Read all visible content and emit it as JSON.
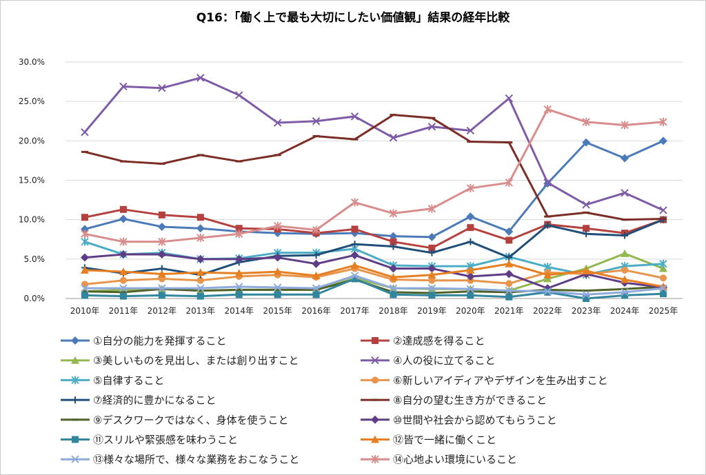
{
  "chart_data": {
    "type": "line",
    "title": "Q16：「働く上で最も大切にしたい価値観」結果の経年比較",
    "xlabel": "",
    "ylabel": "",
    "ylim": [
      0,
      30
    ],
    "y_ticks": [
      "0.0%",
      "5.0%",
      "10.0%",
      "15.0%",
      "20.0%",
      "25.0%",
      "30.0%"
    ],
    "categories": [
      "2010年",
      "2011年",
      "2012年",
      "2013年",
      "2014年",
      "2015年",
      "2016年",
      "2017年",
      "2018年",
      "2019年",
      "2020年",
      "2021年",
      "2022年",
      "2023年",
      "2024年",
      "2025年"
    ],
    "grid": true,
    "legend_position": "bottom",
    "series": [
      {
        "name": "①自分の能力を発揮すること",
        "color": "#4a7ab8",
        "marker": "diamond",
        "values": [
          8.8,
          10.1,
          9.1,
          8.9,
          8.5,
          8.3,
          8.2,
          8.3,
          7.9,
          7.8,
          10.4,
          8.5,
          14.6,
          19.8,
          17.8,
          20.0
        ]
      },
      {
        "name": "②達成感を得ること",
        "color": "#b5413f",
        "marker": "square",
        "values": [
          10.3,
          11.3,
          10.6,
          10.3,
          8.9,
          8.8,
          8.3,
          8.8,
          7.2,
          6.4,
          9.0,
          7.4,
          9.4,
          8.9,
          8.3,
          10.0
        ]
      },
      {
        "name": "③美しいものを見出し、または創り出すこと",
        "color": "#93b84f",
        "marker": "triangle",
        "values": [
          0.9,
          1.1,
          1.2,
          1.0,
          1.1,
          1.1,
          1.1,
          2.6,
          1.3,
          1.2,
          1.2,
          1.0,
          2.5,
          3.8,
          5.7,
          3.8
        ]
      },
      {
        "name": "④人の役に立てること",
        "color": "#7e5ba6",
        "marker": "x",
        "values": [
          21.1,
          26.9,
          26.7,
          28.0,
          25.8,
          22.3,
          22.5,
          23.1,
          20.4,
          21.8,
          21.3,
          25.4,
          14.7,
          11.9,
          13.4,
          11.2
        ]
      },
      {
        "name": "⑤自律すること",
        "color": "#4bacc6",
        "marker": "star",
        "values": [
          7.2,
          5.6,
          5.8,
          5.0,
          5.1,
          5.8,
          5.8,
          6.3,
          4.2,
          4.1,
          4.1,
          5.3,
          4.0,
          3.0,
          4.1,
          4.4
        ]
      },
      {
        "name": "⑥新しいアイディアやデザインを生み出すこと",
        "color": "#e8944a",
        "marker": "circle",
        "values": [
          1.8,
          2.3,
          2.5,
          2.3,
          2.8,
          3.0,
          2.7,
          3.8,
          2.4,
          2.3,
          2.3,
          1.9,
          3.3,
          3.1,
          3.6,
          2.6
        ]
      },
      {
        "name": "⑦経済的に豊かになること",
        "color": "#1f4e79",
        "marker": "plus",
        "values": [
          3.9,
          3.2,
          3.8,
          3.0,
          4.6,
          5.4,
          5.5,
          6.9,
          6.6,
          5.8,
          7.2,
          5.2,
          9.3,
          8.2,
          8.0,
          10.0
        ]
      },
      {
        "name": "⑧自分の望む生き方ができること",
        "color": "#7b2d26",
        "marker": "dash",
        "values": [
          18.6,
          17.4,
          17.1,
          18.2,
          17.4,
          18.2,
          20.6,
          20.2,
          23.3,
          22.9,
          19.9,
          19.8,
          10.4,
          10.9,
          10.0,
          10.1
        ]
      },
      {
        "name": "⑨デスクワークではなく、身体を使うこと",
        "color": "#4f6228",
        "marker": "dash",
        "values": [
          0.9,
          0.8,
          1.2,
          1.0,
          1.1,
          1.1,
          1.1,
          2.4,
          0.8,
          0.7,
          0.9,
          0.8,
          1.1,
          1.0,
          1.2,
          1.5
        ]
      },
      {
        "name": "⑩世間や社会から認めてもらうこと",
        "color": "#5f3d86",
        "marker": "diamond",
        "values": [
          5.2,
          5.6,
          5.6,
          5.0,
          5.0,
          5.2,
          4.4,
          5.5,
          3.8,
          3.8,
          2.8,
          3.1,
          1.3,
          3.1,
          2.0,
          1.4
        ]
      },
      {
        "name": "⑪スリルや緊張感を味わうこと",
        "color": "#31859c",
        "marker": "square",
        "values": [
          0.4,
          0.3,
          0.4,
          0.3,
          0.5,
          0.5,
          0.5,
          2.5,
          0.5,
          0.4,
          0.4,
          0.2,
          0.8,
          0.0,
          0.4,
          0.6
        ]
      },
      {
        "name": "⑫皆で一緒に働くこと",
        "color": "#e67e22",
        "marker": "triangle",
        "values": [
          3.6,
          3.4,
          3.1,
          3.3,
          3.2,
          3.4,
          2.9,
          4.2,
          2.7,
          3.0,
          3.6,
          4.4,
          3.0,
          3.5,
          2.4,
          1.5
        ]
      },
      {
        "name": "⑬様々な場所で、様々な業務をおこなうこと",
        "color": "#8ea9db",
        "marker": "x",
        "values": [
          1.3,
          1.3,
          1.3,
          1.3,
          1.5,
          1.4,
          1.3,
          2.9,
          1.3,
          1.3,
          1.2,
          1.0,
          0.9,
          0.5,
          0.8,
          1.3
        ]
      },
      {
        "name": "⑭心地よい環境にいること",
        "color": "#d98c8c",
        "marker": "star",
        "values": [
          8.2,
          7.2,
          7.2,
          7.7,
          8.2,
          9.2,
          8.7,
          12.2,
          10.8,
          11.4,
          14.0,
          14.7,
          24.0,
          22.4,
          22.0,
          22.4
        ]
      }
    ]
  }
}
